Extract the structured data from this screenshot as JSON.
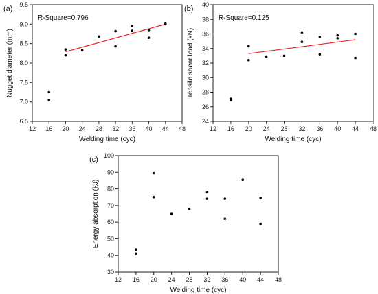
{
  "chart_data": [
    {
      "type": "scatter",
      "panel_label": "(a)",
      "xlabel": "Welding time (cyc)",
      "ylabel": "Nugget diameter (mm)",
      "xlim": [
        12,
        48
      ],
      "ylim": [
        6.5,
        9.5
      ],
      "xticks": [
        12,
        16,
        20,
        24,
        28,
        32,
        36,
        40,
        44,
        48
      ],
      "yticks": [
        6.5,
        7.0,
        7.5,
        8.0,
        8.5,
        9.0,
        9.5
      ],
      "ytick_decimals": 1,
      "annotation": "R-Square=0.796",
      "fit_line": {
        "x": [
          20,
          44
        ],
        "y": [
          8.29,
          9.0
        ],
        "color": "#e8221b"
      },
      "points": [
        {
          "x": 16,
          "y": 7.25
        },
        {
          "x": 16,
          "y": 7.05
        },
        {
          "x": 20,
          "y": 8.35
        },
        {
          "x": 20,
          "y": 8.2
        },
        {
          "x": 24,
          "y": 8.33
        },
        {
          "x": 28,
          "y": 8.68
        },
        {
          "x": 32,
          "y": 8.82
        },
        {
          "x": 32,
          "y": 8.43
        },
        {
          "x": 36,
          "y": 8.95
        },
        {
          "x": 36,
          "y": 8.83
        },
        {
          "x": 40,
          "y": 8.85
        },
        {
          "x": 40,
          "y": 8.65
        },
        {
          "x": 44,
          "y": 9.03
        },
        {
          "x": 44,
          "y": 9.0
        }
      ]
    },
    {
      "type": "scatter",
      "panel_label": "(b)",
      "xlabel": "Welding time (cyc)",
      "ylabel": "Tensile shear load (kN)",
      "xlim": [
        12,
        48
      ],
      "ylim": [
        24,
        40
      ],
      "xticks": [
        12,
        16,
        20,
        24,
        28,
        32,
        36,
        40,
        44,
        48
      ],
      "yticks": [
        24,
        26,
        28,
        30,
        32,
        34,
        36,
        38,
        40
      ],
      "ytick_decimals": 0,
      "annotation": "R-Square=0.125",
      "fit_line": {
        "x": [
          20,
          44
        ],
        "y": [
          33.3,
          35.2
        ],
        "color": "#e8221b"
      },
      "points": [
        {
          "x": 16,
          "y": 27.1
        },
        {
          "x": 16,
          "y": 26.9
        },
        {
          "x": 20,
          "y": 34.3
        },
        {
          "x": 20,
          "y": 32.4
        },
        {
          "x": 24,
          "y": 32.9
        },
        {
          "x": 28,
          "y": 33.0
        },
        {
          "x": 32,
          "y": 36.2
        },
        {
          "x": 32,
          "y": 34.9
        },
        {
          "x": 36,
          "y": 35.6
        },
        {
          "x": 36,
          "y": 33.2
        },
        {
          "x": 40,
          "y": 35.8
        },
        {
          "x": 40,
          "y": 35.4
        },
        {
          "x": 44,
          "y": 36.0
        },
        {
          "x": 44,
          "y": 32.7
        }
      ]
    },
    {
      "type": "scatter",
      "panel_label": "(c)",
      "xlabel": "Welding time (cyc)",
      "ylabel": "Energy absorption (kJ)",
      "xlim": [
        12,
        48
      ],
      "ylim": [
        30,
        100
      ],
      "xticks": [
        12,
        16,
        20,
        24,
        28,
        32,
        36,
        40,
        44,
        48
      ],
      "yticks": [
        30,
        40,
        50,
        60,
        70,
        80,
        90,
        100
      ],
      "ytick_decimals": 0,
      "annotation": "",
      "points": [
        {
          "x": 16,
          "y": 43.5
        },
        {
          "x": 16,
          "y": 41.0
        },
        {
          "x": 20,
          "y": 89.5
        },
        {
          "x": 20,
          "y": 75.0
        },
        {
          "x": 24,
          "y": 65.0
        },
        {
          "x": 28,
          "y": 68.0
        },
        {
          "x": 32,
          "y": 78.0
        },
        {
          "x": 32,
          "y": 74.0
        },
        {
          "x": 36,
          "y": 74.0
        },
        {
          "x": 36,
          "y": 62.0
        },
        {
          "x": 40,
          "y": 85.5
        },
        {
          "x": 44,
          "y": 74.5
        },
        {
          "x": 44,
          "y": 59.0
        }
      ]
    }
  ]
}
